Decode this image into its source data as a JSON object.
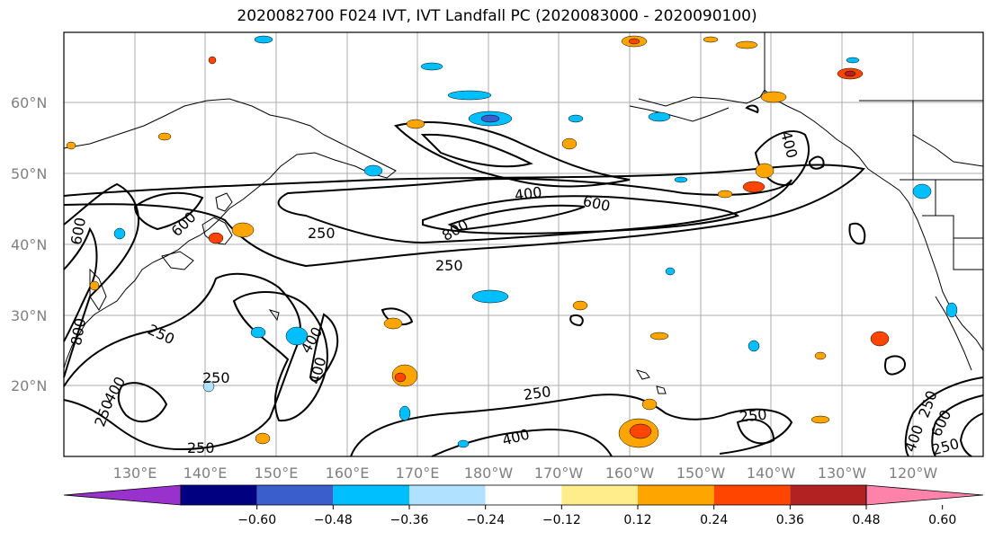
{
  "title": "2020082700 F024 IVT, IVT Landfall PC (2020083000 - 2020090100)",
  "longitude_labels": [
    "130°E",
    "140°E",
    "150°E",
    "160°E",
    "170°E",
    "180°W",
    "170°W",
    "160°W",
    "150°W",
    "140°W",
    "130°W",
    "120°W"
  ],
  "latitude_labels": [
    "60°N",
    "50°N",
    "40°N",
    "30°N",
    "20°N"
  ],
  "contour_labels": [
    {
      "text": "250"
    },
    {
      "text": "250"
    },
    {
      "text": "250"
    },
    {
      "text": "250"
    },
    {
      "text": "250"
    },
    {
      "text": "250"
    },
    {
      "text": "250"
    },
    {
      "text": "250"
    },
    {
      "text": "250"
    },
    {
      "text": "250"
    },
    {
      "text": "400"
    },
    {
      "text": "400"
    },
    {
      "text": "400"
    },
    {
      "text": "400"
    },
    {
      "text": "400"
    },
    {
      "text": "400"
    },
    {
      "text": "400"
    },
    {
      "text": "600"
    },
    {
      "text": "600"
    },
    {
      "text": "600"
    },
    {
      "text": "600"
    },
    {
      "text": "800"
    },
    {
      "text": "800"
    }
  ],
  "colorbar": {
    "ticks": [
      "−0.60",
      "−0.48",
      "−0.36",
      "−0.24",
      "−0.12",
      "0.12",
      "0.24",
      "0.36",
      "0.48",
      "0.60"
    ],
    "colors": [
      "#9932cc",
      "#000080",
      "#3a5fcd",
      "#00bfff",
      "#b0e2ff",
      "#ffffff",
      "#ffec8b",
      "#ffa500",
      "#ff4500",
      "#b22222",
      "#ff82ab"
    ]
  },
  "colors": {
    "contour": "#000000",
    "coast": "#000000",
    "grid": "#999999"
  }
}
